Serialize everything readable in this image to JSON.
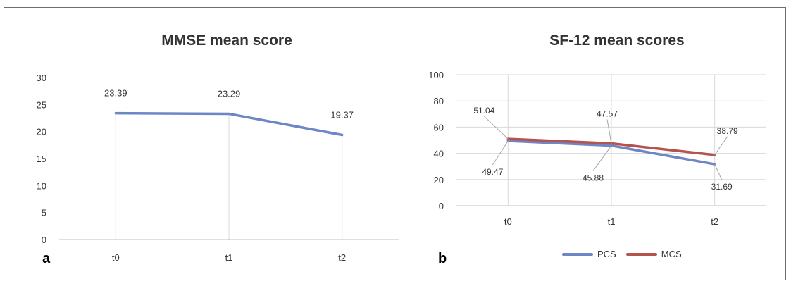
{
  "colors": {
    "pcs": "#6f86c6",
    "mcs": "#b5534f",
    "mmse": "#6f86c6",
    "grid": "#d9d9d9",
    "axis": "#bfbfbf"
  },
  "chart_data": [
    {
      "type": "line",
      "panel": "a",
      "title": "MMSE mean score",
      "categories": [
        "t0",
        "t1",
        "t2"
      ],
      "series": [
        {
          "values": [
            23.39,
            23.29,
            19.37
          ]
        }
      ],
      "data_labels": [
        "23.39",
        "23.29",
        "19.37"
      ],
      "ylim": [
        0,
        30
      ],
      "yticks": [
        "0",
        "5",
        "10",
        "15",
        "20",
        "25",
        "30"
      ],
      "grid": "vertical"
    },
    {
      "type": "line",
      "panel": "b",
      "title": "SF-12 mean scores",
      "categories": [
        "t0",
        "t1",
        "t2"
      ],
      "series": [
        {
          "name": "PCS",
          "values": [
            49.47,
            45.88,
            31.69
          ]
        },
        {
          "name": "MCS",
          "values": [
            51.04,
            47.57,
            38.79
          ]
        }
      ],
      "ylim": [
        0,
        100
      ],
      "yticks": [
        "0",
        "20",
        "40",
        "60",
        "80",
        "100"
      ],
      "grid": "both",
      "legend": "bottom"
    }
  ],
  "panel_labels": {
    "a": "a",
    "b": "b"
  }
}
